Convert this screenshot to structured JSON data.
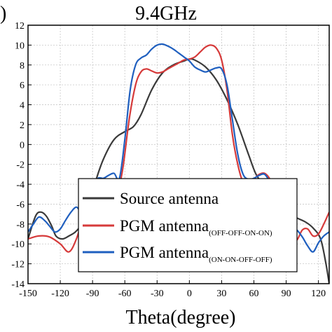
{
  "panel_letter": ")",
  "chart_data": {
    "type": "line",
    "title": "9.4GHz",
    "xlabel": "Theta(degree)",
    "ylabel": "",
    "xlim": [
      -150,
      130
    ],
    "ylim": [
      -14,
      12
    ],
    "xticks": [
      -150,
      -120,
      -90,
      -60,
      -30,
      0,
      30,
      60,
      90,
      120
    ],
    "yticks": [
      -14,
      -12,
      -10,
      -8,
      -6,
      -4,
      -2,
      0,
      2,
      4,
      6,
      8,
      10,
      12
    ],
    "grid": true,
    "legend_position": "lower-center",
    "series": [
      {
        "name": "Source antenna",
        "subscript": "",
        "color": "#3a3a3a",
        "x": [
          -150,
          -143,
          -138,
          -133,
          -128,
          -124,
          -118,
          -112,
          -106,
          -100,
          -94,
          -88,
          -80,
          -70,
          -60,
          -52,
          -45,
          -35,
          -25,
          -15,
          -5,
          0,
          5,
          15,
          25,
          35,
          45,
          55,
          62,
          70,
          78,
          85,
          92,
          100,
          108,
          115,
          122,
          127,
          130
        ],
        "y": [
          -9.5,
          -7.2,
          -6.8,
          -7.2,
          -8.2,
          -9.2,
          -9.5,
          -9.2,
          -8.8,
          -8.0,
          -6.5,
          -4.0,
          -1.5,
          0.5,
          1.3,
          1.8,
          3.0,
          5.5,
          7.2,
          8.0,
          8.4,
          8.6,
          8.5,
          7.8,
          6.5,
          4.5,
          2.0,
          -1.0,
          -3.0,
          -4.2,
          -5.5,
          -6.5,
          -7.0,
          -7.4,
          -7.8,
          -8.4,
          -9.5,
          -12.0,
          -14.0
        ]
      },
      {
        "name": "PGM antenna",
        "subscript": "(OFF-OFF-ON-ON)",
        "color": "#d63a3a",
        "x": [
          -150,
          -140,
          -130,
          -120,
          -112,
          -105,
          -98,
          -92,
          -86,
          -80,
          -74,
          -68,
          -62,
          -56,
          -50,
          -45,
          -40,
          -35,
          -30,
          -25,
          -20,
          -15,
          -10,
          -5,
          0,
          5,
          10,
          15,
          20,
          25,
          30,
          35,
          40,
          45,
          50,
          55,
          60,
          65,
          70,
          75,
          80,
          85,
          90,
          95,
          100,
          105,
          110,
          115,
          120,
          125,
          130
        ],
        "y": [
          -9.5,
          -9.2,
          -9.3,
          -10.0,
          -10.8,
          -9.5,
          -7.0,
          -5.2,
          -4.5,
          -4.8,
          -5.5,
          -5.2,
          -2.5,
          2.5,
          6.0,
          7.3,
          7.6,
          7.4,
          7.2,
          7.3,
          7.6,
          7.9,
          8.2,
          8.5,
          8.6,
          8.8,
          9.3,
          9.8,
          10.0,
          9.7,
          8.5,
          5.5,
          1.0,
          -2.0,
          -3.8,
          -4.0,
          -3.5,
          -3.0,
          -2.9,
          -3.5,
          -4.7,
          -6.3,
          -8.2,
          -9.5,
          -9.6,
          -8.6,
          -8.5,
          -9.2,
          -9.0,
          -8.0,
          -6.8
        ]
      },
      {
        "name": "PGM antenna",
        "subscript": "(ON-ON-OFF-OFF)",
        "color": "#1f5fbf",
        "x": [
          -150,
          -145,
          -140,
          -135,
          -130,
          -125,
          -120,
          -115,
          -110,
          -105,
          -100,
          -95,
          -90,
          -85,
          -80,
          -75,
          -70,
          -65,
          -60,
          -55,
          -50,
          -45,
          -40,
          -35,
          -30,
          -25,
          -20,
          -15,
          -10,
          -5,
          0,
          5,
          10,
          15,
          20,
          25,
          30,
          35,
          40,
          45,
          50,
          55,
          60,
          65,
          70,
          75,
          80,
          85,
          90,
          95,
          100,
          105,
          110,
          115,
          120,
          125,
          130
        ],
        "y": [
          -8.8,
          -8.0,
          -7.3,
          -7.6,
          -8.2,
          -8.8,
          -8.5,
          -7.6,
          -6.8,
          -6.3,
          -6.8,
          -5.8,
          -4.3,
          -3.4,
          -3.4,
          -3.1,
          -2.9,
          -3.4,
          0.5,
          5.5,
          8.0,
          8.7,
          9.0,
          9.6,
          10.0,
          10.1,
          9.9,
          9.6,
          9.2,
          8.8,
          8.4,
          7.8,
          7.5,
          7.3,
          7.5,
          7.7,
          7.6,
          6.0,
          2.5,
          -1.0,
          -3.0,
          -3.5,
          -3.4,
          -3.1,
          -3.0,
          -3.8,
          -4.9,
          -6.6,
          -8.0,
          -8.3,
          -8.6,
          -9.3,
          -10.2,
          -10.8,
          -9.9,
          -9.2,
          -8.8
        ]
      }
    ]
  }
}
